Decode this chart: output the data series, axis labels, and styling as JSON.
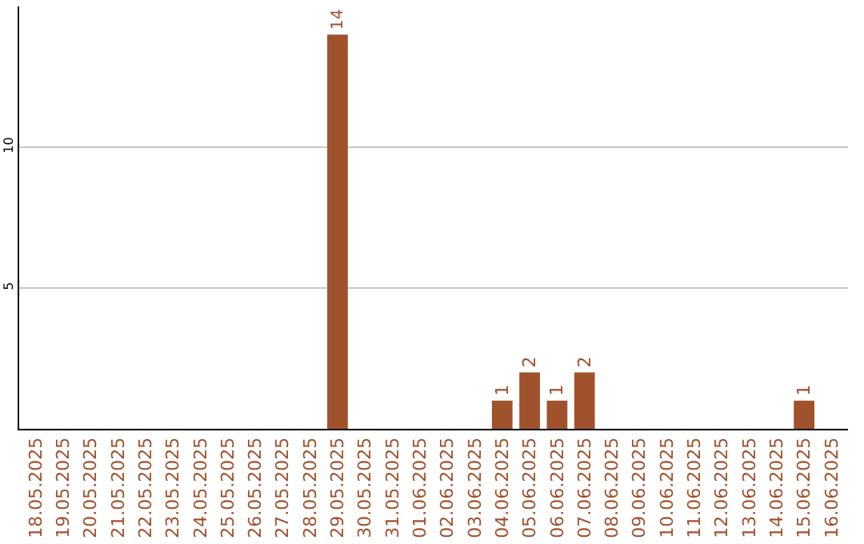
{
  "chart_data": {
    "type": "bar",
    "categories": [
      "18.05.2025",
      "19.05.2025",
      "20.05.2025",
      "21.05.2025",
      "22.05.2025",
      "23.05.2025",
      "24.05.2025",
      "25.05.2025",
      "26.05.2025",
      "27.05.2025",
      "28.05.2025",
      "29.05.2025",
      "30.05.2025",
      "31.05.2025",
      "01.06.2025",
      "02.06.2025",
      "03.06.2025",
      "04.06.2025",
      "05.06.2025",
      "06.06.2025",
      "07.06.2025",
      "08.06.2025",
      "09.06.2025",
      "10.06.2025",
      "11.06.2025",
      "12.06.2025",
      "13.06.2025",
      "14.06.2025",
      "15.06.2025",
      "16.06.2025"
    ],
    "values": [
      0,
      0,
      0,
      0,
      0,
      0,
      0,
      0,
      0,
      0,
      0,
      14,
      0,
      0,
      0,
      0,
      0,
      1,
      2,
      1,
      2,
      0,
      0,
      0,
      0,
      0,
      0,
      0,
      1,
      0
    ],
    "value_labels": [
      null,
      null,
      null,
      null,
      null,
      null,
      null,
      null,
      null,
      null,
      null,
      "14",
      null,
      null,
      null,
      null,
      null,
      "1",
      "2",
      "1",
      "2",
      null,
      null,
      null,
      null,
      null,
      null,
      null,
      "1",
      null
    ],
    "color": "#a0522d",
    "ylim": [
      0,
      15
    ],
    "yticks": [
      5,
      10
    ],
    "grid": "y"
  }
}
